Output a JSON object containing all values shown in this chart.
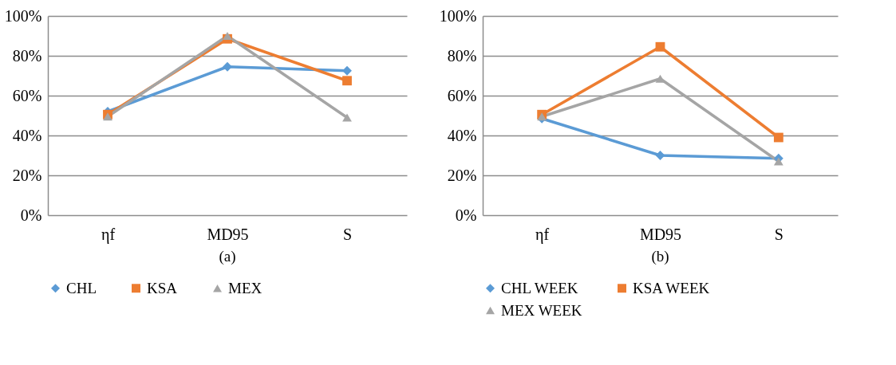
{
  "chart_data": [
    {
      "type": "line",
      "categories": [
        "ηf",
        "MD95",
        "S"
      ],
      "ylim": [
        0,
        100
      ],
      "yticks": [
        {
          "value": 0,
          "label": "0%"
        },
        {
          "value": 20,
          "label": "20%"
        },
        {
          "value": 40,
          "label": "40%"
        },
        {
          "value": 60,
          "label": "60%"
        },
        {
          "value": 80,
          "label": "80%"
        },
        {
          "value": 100,
          "label": "100%"
        }
      ],
      "grid": "y",
      "legend": "bottom",
      "annotations": [
        "(a)"
      ],
      "series": [
        {
          "name": "CHL",
          "color": "#5b9bd5",
          "marker": "diamond",
          "values": [
            52,
            74.5,
            72.5
          ]
        },
        {
          "name": "KSA",
          "color": "#ed7d31",
          "marker": "square",
          "values": [
            50.5,
            88.5,
            67.5
          ]
        },
        {
          "name": "MEX",
          "color": "#a5a5a5",
          "marker": "triangle",
          "values": [
            49.5,
            90,
            49
          ]
        }
      ]
    },
    {
      "type": "line",
      "categories": [
        "ηf",
        "MD95",
        "S"
      ],
      "ylim": [
        0,
        100
      ],
      "yticks": [
        {
          "value": 0,
          "label": "0%"
        },
        {
          "value": 20,
          "label": "20%"
        },
        {
          "value": 40,
          "label": "40%"
        },
        {
          "value": 60,
          "label": "60%"
        },
        {
          "value": 80,
          "label": "80%"
        },
        {
          "value": 100,
          "label": "100%"
        }
      ],
      "grid": "y",
      "legend": "bottom",
      "annotations": [
        "(b)"
      ],
      "series": [
        {
          "name": "CHL WEEK",
          "color": "#5b9bd5",
          "marker": "diamond",
          "values": [
            48.5,
            30,
            28.5
          ]
        },
        {
          "name": "KSA WEEK",
          "color": "#ed7d31",
          "marker": "square",
          "values": [
            50.5,
            84.5,
            39
          ]
        },
        {
          "name": "MEX WEEK",
          "color": "#a5a5a5",
          "marker": "triangle",
          "values": [
            49.5,
            68.5,
            27
          ]
        }
      ]
    }
  ]
}
